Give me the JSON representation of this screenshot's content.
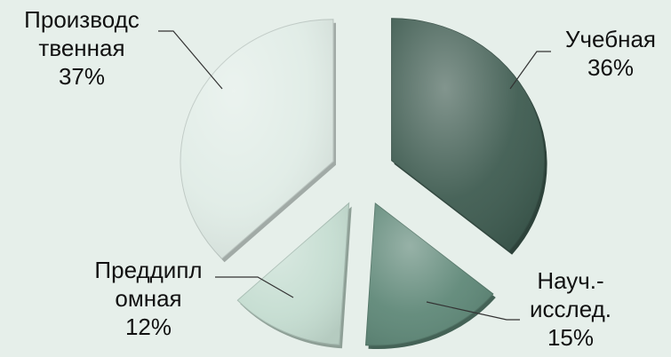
{
  "chart_data": {
    "type": "pie",
    "exploded": true,
    "slices": [
      {
        "label_lines": [
          "Учебная"
        ],
        "percent_label": "36%",
        "value": 36,
        "color": "#3f5c51"
      },
      {
        "label_lines": [
          "Науч.-",
          "исслед."
        ],
        "percent_label": "15%",
        "value": 15,
        "color": "#5f8878"
      },
      {
        "label_lines": [
          "Преддипл",
          "омная"
        ],
        "percent_label": "12%",
        "value": 12,
        "color": "#c5ddd1"
      },
      {
        "label_lines": [
          "Производс",
          "твенная"
        ],
        "percent_label": "37%",
        "value": 37,
        "color": "#e0ece6"
      }
    ]
  }
}
